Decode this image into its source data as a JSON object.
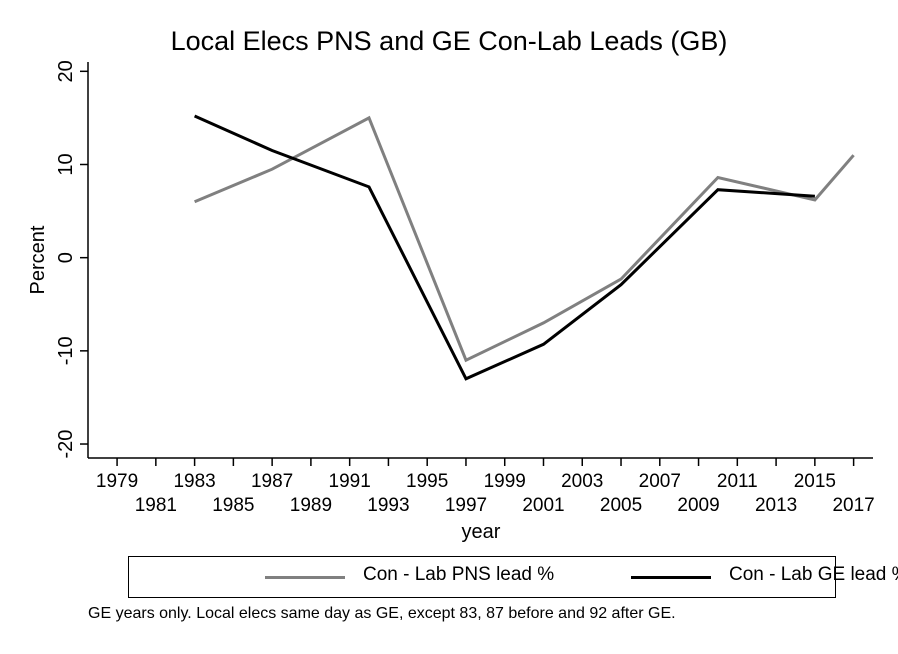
{
  "chart_data": {
    "type": "line",
    "title": "Local Elecs PNS and GE Con-Lab Leads (GB)",
    "xlabel": "year",
    "ylabel": "Percent",
    "xlim": [
      1977.5,
      2018
    ],
    "ylim": [
      -21.5,
      21
    ],
    "xticks_upper": [
      1979,
      1983,
      1987,
      1991,
      1995,
      1999,
      2003,
      2007,
      2011,
      2015
    ],
    "xticks_lower": [
      1981,
      1985,
      1989,
      1993,
      1997,
      2001,
      2005,
      2009,
      2013,
      2017
    ],
    "yticks": [
      -20,
      -10,
      0,
      10,
      20
    ],
    "grid": false,
    "legend_position": "bottom",
    "series": [
      {
        "name": "Con - Lab PNS lead %",
        "color": "#808080",
        "x": [
          1983,
          1987,
          1992,
          1997,
          2001,
          2005,
          2010,
          2015,
          2017
        ],
        "y": [
          6,
          9.5,
          15,
          -11,
          -7,
          -2.3,
          8.6,
          6.2,
          11
        ]
      },
      {
        "name": "Con - Lab GE lead %",
        "color": "#000000",
        "x": [
          1983,
          1987,
          1992,
          1997,
          2001,
          2005,
          2010,
          2015
        ],
        "y": [
          15.2,
          11.5,
          7.6,
          -13,
          -9.3,
          -2.9,
          7.3,
          6.6
        ]
      }
    ],
    "note": "GE years only. Local elecs same day as GE, except 83, 87 before and 92 after GE."
  }
}
